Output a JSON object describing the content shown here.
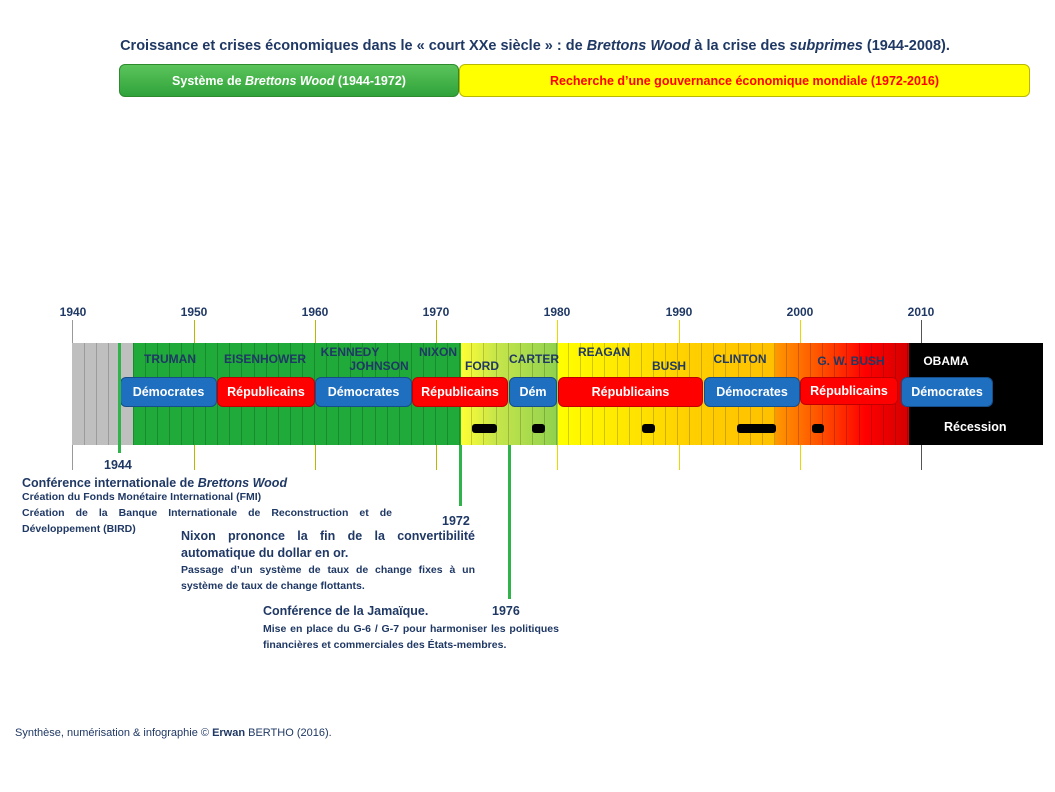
{
  "title": {
    "part1": "Croissance et crises économiques dans le « court XXe siècle » : de ",
    "part2": "Brettons Wood",
    "part3": " à la crise des ",
    "part4": "subprimes",
    "part5": " (1944-2008)."
  },
  "eras": {
    "bretton": {
      "prefix": "Système de ",
      "italic": "Brettons Wood",
      "suffix": " (1944-1972)"
    },
    "recherche": {
      "label": "Recherche d’une gouvernance économique mondiale (1972-2016)"
    }
  },
  "axis_years": [
    "1940",
    "1950",
    "1960",
    "1970",
    "1980",
    "1990",
    "2000",
    "2010"
  ],
  "presidents": {
    "truman": "TRUMAN",
    "eisenhower": "EISENHOWER",
    "kennedy": "KENNEDY",
    "johnson": "JOHNSON",
    "nixon": "NIXON",
    "ford": "FORD",
    "carter": "CARTER",
    "reagan": "REAGAN",
    "bush": "BUSH",
    "clinton": "CLINTON",
    "gwbush": "G. W. BUSH",
    "obama": "OBAMA"
  },
  "parties": {
    "p1": "Démocrates",
    "p2": "Républicains",
    "p3": "Démocrates",
    "p4": "Républicains",
    "p5": "Dém",
    "p6": "Républicains",
    "p7": "Démocrates",
    "p8": "Républicains",
    "p9": "Démocrates"
  },
  "recession_label": "Récession",
  "events": {
    "e1944": {
      "year": "1944",
      "heading_prefix": "Conférence internationale de ",
      "heading_italic": "Brettons Wood",
      "line1": "Création du Fonds Monétaire International (FMI)",
      "line2": "Création de la Banque Internationale de Reconstruction et de Développement (BIRD)"
    },
    "e1972": {
      "year": "1972",
      "heading": "Nixon prononce la fin de la convertibilité automatique du dollar en or.",
      "detail": "Passage d’un système de taux de change fixes à un système de taux de change flottants."
    },
    "e1976": {
      "year": "1976",
      "heading": "Conférence de la Jamaïque.",
      "detail": "Mise en place du G-6 / G-7 pour harmoniser les politiques financières et commerciales des États-membres."
    }
  },
  "credit": {
    "prefix": "Synthèse, numérisation & infographie © ",
    "author_bold": "Erwan",
    "author_rest": " BERTHO (2016)."
  },
  "colors": {
    "title": "#1f3864",
    "bretton_green": "#2fa33a",
    "yellow": "#ffff00",
    "democrat_blue": "#1f6fc0",
    "republican_red": "#ff0000",
    "timeline_gray": "#bfbfbf",
    "timeline_green": "#1faa3a",
    "timeline_orange": "#ffc000",
    "timeline_black": "#000000"
  }
}
